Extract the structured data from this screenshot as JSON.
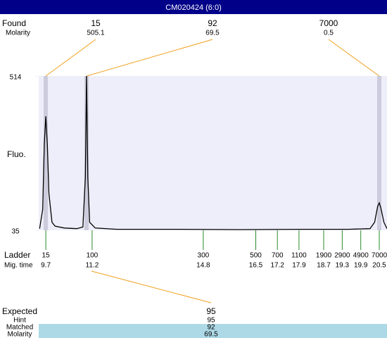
{
  "chart_data": {
    "type": "line",
    "title": "CM020424 (6:0)",
    "found": {
      "label": "Found",
      "molarity_label": "Molarity",
      "sizes": [
        15,
        92,
        7000
      ],
      "molarity": [
        505.1,
        69.5,
        0.5
      ]
    },
    "ylabel": "Fluo.",
    "ylim": [
      35,
      514
    ],
    "yticks": [
      35,
      514
    ],
    "xlim": [
      9.47,
      20.75
    ],
    "ladder_label": "Ladder",
    "time_label": "Mig. time",
    "xticks": [
      {
        "value": 9.7,
        "label": "15"
      },
      {
        "value": 11.2,
        "label": "100"
      },
      {
        "value": 14.8,
        "label": "300"
      },
      {
        "value": 16.5,
        "label": "500"
      },
      {
        "value": 17.2,
        "label": "700"
      },
      {
        "value": 17.9,
        "label": "1100"
      },
      {
        "value": 18.7,
        "label": "1900"
      },
      {
        "value": 19.3,
        "label": "2900"
      },
      {
        "value": 19.9,
        "label": "4900"
      },
      {
        "value": 20.5,
        "label": "7000"
      }
    ],
    "series": [
      {
        "color": "#000000",
        "x": [
          9.5,
          9.6,
          9.65,
          9.7,
          9.75,
          9.8,
          9.9,
          10.0,
          10.3,
          10.7,
          10.9,
          10.98,
          11.02,
          11.06,
          11.12,
          11.3,
          12,
          14,
          16,
          18,
          19.5,
          20.2,
          20.35,
          20.45,
          20.5,
          20.55,
          20.65,
          20.75
        ],
        "values": [
          40,
          100,
          300,
          389,
          300,
          150,
          60,
          48,
          42,
          40,
          45,
          200,
          514,
          200,
          60,
          42,
          38,
          38,
          37,
          38,
          38,
          40,
          60,
          110,
          120,
          105,
          60,
          40
        ]
      }
    ],
    "expected": {
      "label": "Expected",
      "value": 95,
      "rows": [
        {
          "label": "Hint",
          "value": 95
        },
        {
          "label": "Matched",
          "value": 92
        },
        {
          "label": "Molarity",
          "value": 69.5
        }
      ]
    }
  }
}
